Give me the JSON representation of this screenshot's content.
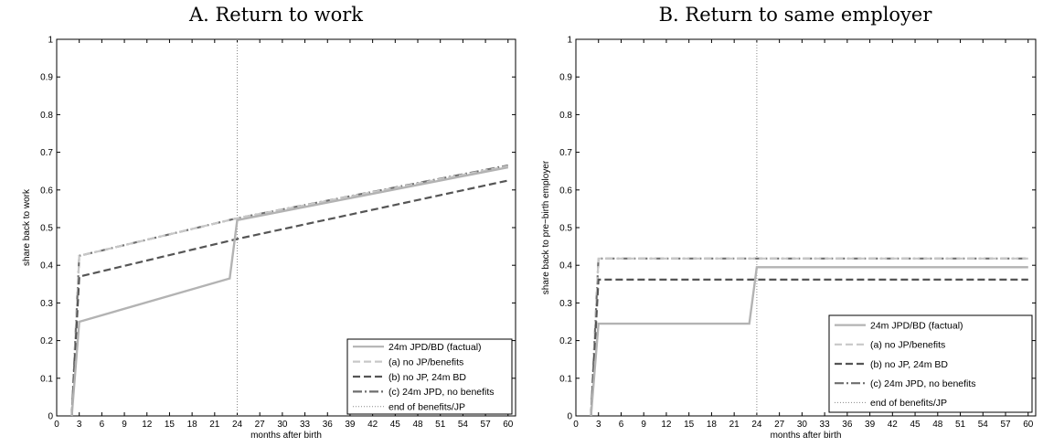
{
  "colors": {
    "factual": "#b3b3b3",
    "cf_a": "#c8c8c8",
    "cf_b": "#555555",
    "cf_c": "#6e6e6e",
    "marker": "#888888"
  },
  "legend_entries": [
    "24m JPD/BD (factual)",
    "(a) no JP/benefits",
    "(b) no JP, 24m BD",
    "(c) 24m JPD, no benefits",
    "end of benefits/JP"
  ],
  "chart_data": [
    {
      "type": "line",
      "title": "A. Return to work",
      "xlabel": "months after birth",
      "ylabel": "share back to work",
      "xlim": [
        0,
        61
      ],
      "ylim": [
        0,
        1
      ],
      "xticks": [
        0,
        3,
        6,
        9,
        12,
        15,
        18,
        21,
        24,
        27,
        30,
        33,
        36,
        39,
        42,
        45,
        48,
        51,
        54,
        57,
        60
      ],
      "yticks": [
        0,
        0.1,
        0.2,
        0.3,
        0.4,
        0.5,
        0.6,
        0.7,
        0.8,
        0.9,
        1
      ],
      "vline": 24,
      "legend": "bottom-right",
      "grid": false,
      "series": [
        {
          "name": "24m JPD/BD (factual)",
          "style": "solid",
          "color_key": "factual",
          "x": [
            2,
            3,
            23,
            24,
            60
          ],
          "y": [
            0,
            0.25,
            0.365,
            0.52,
            0.66
          ]
        },
        {
          "name": "(a) no JP/benefits",
          "style": "dashed",
          "color_key": "cf_a",
          "x": [
            2,
            3,
            24,
            60
          ],
          "y": [
            0,
            0.425,
            0.525,
            0.663
          ]
        },
        {
          "name": "(b) no JP, 24m BD",
          "style": "dashed",
          "color_key": "cf_b",
          "x": [
            2,
            3,
            24,
            60
          ],
          "y": [
            0,
            0.37,
            0.47,
            0.625
          ]
        },
        {
          "name": "(c) 24m JPD, no benefits",
          "style": "dashdot",
          "color_key": "cf_c",
          "x": [
            2,
            3,
            24,
            60
          ],
          "y": [
            0,
            0.425,
            0.525,
            0.665
          ]
        }
      ]
    },
    {
      "type": "line",
      "title": "B. Return to same employer",
      "xlabel": "months after birth",
      "ylabel": "share back to pre−birth employer",
      "xlim": [
        0,
        61
      ],
      "ylim": [
        0,
        1
      ],
      "xticks": [
        0,
        3,
        6,
        9,
        12,
        15,
        18,
        21,
        24,
        27,
        30,
        33,
        36,
        39,
        42,
        45,
        48,
        51,
        54,
        57,
        60
      ],
      "yticks": [
        0,
        0.1,
        0.2,
        0.3,
        0.4,
        0.5,
        0.6,
        0.7,
        0.8,
        0.9,
        1
      ],
      "vline": 24,
      "legend": "bottom-right",
      "grid": false,
      "series": [
        {
          "name": "24m JPD/BD (factual)",
          "style": "solid",
          "color_key": "factual",
          "x": [
            2,
            3,
            23,
            24,
            60
          ],
          "y": [
            0,
            0.245,
            0.245,
            0.395,
            0.395
          ]
        },
        {
          "name": "(a) no JP/benefits",
          "style": "dashed",
          "color_key": "cf_a",
          "x": [
            2,
            3,
            60
          ],
          "y": [
            0,
            0.418,
            0.418
          ]
        },
        {
          "name": "(b) no JP, 24m BD",
          "style": "dashed",
          "color_key": "cf_b",
          "x": [
            2,
            3,
            60
          ],
          "y": [
            0,
            0.362,
            0.362
          ]
        },
        {
          "name": "(c) 24m JPD, no benefits",
          "style": "dashdot",
          "color_key": "cf_c",
          "x": [
            2,
            3,
            60
          ],
          "y": [
            0,
            0.418,
            0.418
          ]
        }
      ]
    }
  ]
}
